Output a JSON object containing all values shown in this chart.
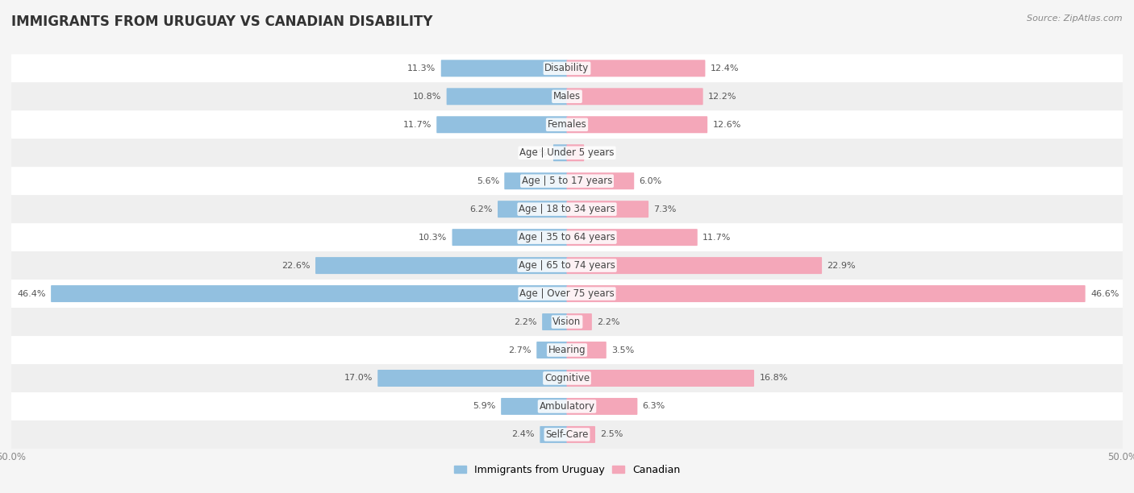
{
  "title": "IMMIGRANTS FROM URUGUAY VS CANADIAN DISABILITY",
  "source": "Source: ZipAtlas.com",
  "categories": [
    "Disability",
    "Males",
    "Females",
    "Age | Under 5 years",
    "Age | 5 to 17 years",
    "Age | 18 to 34 years",
    "Age | 35 to 64 years",
    "Age | 65 to 74 years",
    "Age | Over 75 years",
    "Vision",
    "Hearing",
    "Cognitive",
    "Ambulatory",
    "Self-Care"
  ],
  "left_values": [
    11.3,
    10.8,
    11.7,
    1.2,
    5.6,
    6.2,
    10.3,
    22.6,
    46.4,
    2.2,
    2.7,
    17.0,
    5.9,
    2.4
  ],
  "right_values": [
    12.4,
    12.2,
    12.6,
    1.5,
    6.0,
    7.3,
    11.7,
    22.9,
    46.6,
    2.2,
    3.5,
    16.8,
    6.3,
    2.5
  ],
  "left_color": "#92C0E0",
  "right_color": "#F4A7B9",
  "left_label": "Immigrants from Uruguay",
  "right_label": "Canadian",
  "bar_height": 0.52,
  "xlim": 50.0,
  "row_color_even": "#FFFFFF",
  "row_color_odd": "#EFEFEF",
  "fig_bg": "#F5F5F5",
  "title_fontsize": 12,
  "label_fontsize": 8.5,
  "value_fontsize": 8,
  "axis_label_fontsize": 8.5
}
